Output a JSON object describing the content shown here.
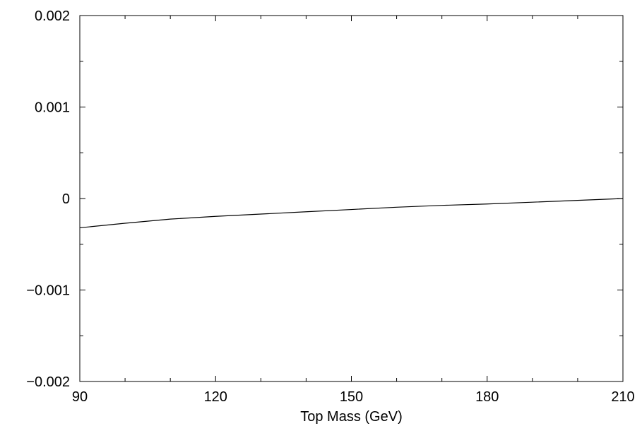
{
  "chart_data": {
    "type": "line",
    "title": "",
    "xlabel": "Top Mass (GeV)",
    "ylabel": "",
    "xlim": [
      90,
      210
    ],
    "ylim": [
      -0.002,
      0.002
    ],
    "x_ticks": [
      90,
      120,
      150,
      180,
      210
    ],
    "x_tick_labels": [
      "90",
      "120",
      "150",
      "180",
      "210"
    ],
    "x_minor_step": 10,
    "y_ticks": [
      -0.002,
      -0.001,
      0,
      0.001,
      0.002
    ],
    "y_tick_labels": [
      "−0.002",
      "−0.001",
      "0",
      "0.001",
      "0.002"
    ],
    "y_minor_step": 0.0005,
    "grid": false,
    "series": [
      {
        "x": [
          90,
          100,
          110,
          120,
          130,
          140,
          150,
          160,
          170,
          180,
          190,
          200,
          210
        ],
        "y": [
          -0.00032,
          -0.00027,
          -0.000225,
          -0.000195,
          -0.00017,
          -0.000145,
          -0.00012,
          -9.5e-05,
          -7.5e-05,
          -6e-05,
          -4e-05,
          -2e-05,
          0.0
        ],
        "color": "#000000"
      }
    ]
  }
}
